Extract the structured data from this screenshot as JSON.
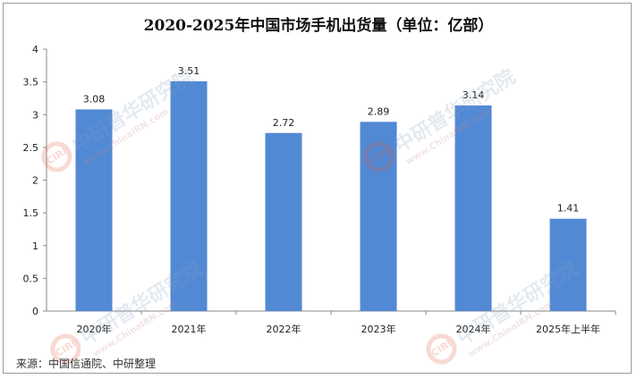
{
  "chart_data": {
    "type": "bar",
    "title": "2020-2025年中国市场手机出货量（单位：亿部）",
    "categories": [
      "2020年",
      "2021年",
      "2022年",
      "2023年",
      "2024年",
      "2025年上半年"
    ],
    "values": [
      3.08,
      3.51,
      2.72,
      2.89,
      3.14,
      1.41
    ],
    "yticks": [
      "0",
      "0.5",
      "1",
      "1.5",
      "2",
      "2.5",
      "3",
      "3.5",
      "4"
    ],
    "ylim": [
      0,
      4
    ],
    "grid": false,
    "bar_color": "#5289d4"
  },
  "source": "来源：中国信通院、中研整理",
  "watermark": {
    "logo": "CIRN",
    "brand": "中研普华研究院",
    "url": "www.ChinaIRN.com"
  }
}
